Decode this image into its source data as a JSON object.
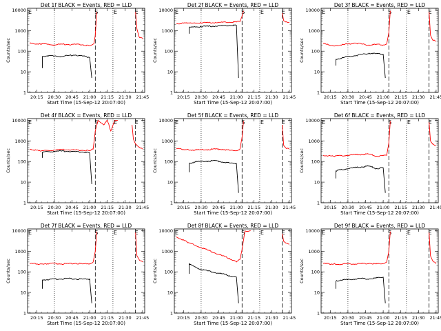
{
  "figure": {
    "xlabel": "Start Time (15-Sep-12 20:07:00)",
    "ylabel": "Counts/sec",
    "x_tick_labels": [
      "20:15",
      "20:30",
      "20:45",
      "21:00",
      "21:15",
      "21:30",
      "21:45"
    ],
    "y_tick_labels": [
      "1",
      "10",
      "100",
      "1000",
      "10000"
    ],
    "marker_labels": [
      "E",
      "S",
      "E",
      "E"
    ]
  },
  "chart_data": [
    {
      "type": "line",
      "title": "Det 1f BLACK = Events, RED = LLD",
      "ylim": [
        1,
        12000
      ],
      "yscale": "log",
      "xlim": [
        20.12,
        21.78
      ],
      "dotted_x": [
        20.5,
        21.33
      ],
      "dashed_x": [
        21.08,
        21.65
      ],
      "series": [
        {
          "name": "Events",
          "color": "#000000",
          "x": [
            20.33,
            20.33,
            20.4,
            20.5,
            20.6,
            20.7,
            20.8,
            20.9,
            21.0,
            21.03
          ],
          "y": [
            15,
            55,
            60,
            58,
            55,
            62,
            65,
            58,
            50,
            5
          ]
        },
        {
          "name": "LLD",
          "color": "#ff0000",
          "x": [
            20.15,
            20.2,
            20.3,
            20.4,
            20.5,
            20.6,
            20.7,
            20.8,
            20.9,
            21.0,
            21.03,
            21.06,
            21.08,
            21.1
          ],
          "y": [
            240,
            230,
            225,
            215,
            200,
            220,
            210,
            215,
            205,
            180,
            200,
            230,
            600,
            8000
          ]
        },
        {
          "name": "LLD-end",
          "color": "#ff0000",
          "x": [
            21.65,
            21.67,
            21.7,
            21.75
          ],
          "y": [
            8000,
            1200,
            500,
            400
          ]
        }
      ]
    },
    {
      "type": "line",
      "title": "Det 2f BLACK = Events, RED = LLD",
      "ylim": [
        1,
        12000
      ],
      "yscale": "log",
      "xlim": [
        20.12,
        21.78
      ],
      "dotted_x": [
        20.5,
        21.33
      ],
      "dashed_x": [
        21.08,
        21.65
      ],
      "series": [
        {
          "name": "Events",
          "color": "#000000",
          "x": [
            20.33,
            20.33,
            20.4,
            20.5,
            20.6,
            20.7,
            20.8,
            20.9,
            21.0,
            21.03
          ],
          "y": [
            700,
            1400,
            1500,
            1550,
            1600,
            1650,
            1700,
            1750,
            1800,
            5
          ]
        },
        {
          "name": "LLD",
          "color": "#ff0000",
          "x": [
            20.15,
            20.3,
            20.4,
            20.5,
            20.6,
            20.7,
            20.8,
            20.9,
            21.0,
            21.05,
            21.08,
            21.1
          ],
          "y": [
            2200,
            2250,
            2300,
            2350,
            2400,
            2450,
            2500,
            2550,
            2600,
            2700,
            5000,
            9000
          ]
        },
        {
          "name": "LLD-end",
          "color": "#ff0000",
          "x": [
            21.65,
            21.67,
            21.7,
            21.75
          ],
          "y": [
            7000,
            3000,
            2600,
            2500
          ]
        }
      ]
    },
    {
      "type": "line",
      "title": "Det 3f BLACK = Events, RED = LLD",
      "ylim": [
        1,
        12000
      ],
      "yscale": "log",
      "xlim": [
        20.12,
        21.78
      ],
      "dotted_x": [
        20.5,
        21.33
      ],
      "dashed_x": [
        21.08,
        21.65
      ],
      "series": [
        {
          "name": "Events",
          "color": "#000000",
          "x": [
            20.33,
            20.33,
            20.4,
            20.5,
            20.6,
            20.7,
            20.8,
            20.9,
            21.0,
            21.03
          ],
          "y": [
            20,
            40,
            45,
            55,
            60,
            70,
            80,
            75,
            70,
            5
          ]
        },
        {
          "name": "LLD",
          "color": "#ff0000",
          "x": [
            20.15,
            20.3,
            20.4,
            20.5,
            20.6,
            20.7,
            20.8,
            20.9,
            21.0,
            21.05,
            21.08,
            21.1
          ],
          "y": [
            230,
            180,
            200,
            220,
            250,
            220,
            200,
            210,
            200,
            220,
            800,
            9000
          ]
        },
        {
          "name": "LLD-end",
          "color": "#ff0000",
          "x": [
            21.65,
            21.67,
            21.7,
            21.75
          ],
          "y": [
            8000,
            600,
            350,
            300
          ]
        }
      ]
    },
    {
      "type": "line",
      "title": "Det 4f BLACK = Events, RED = LLD",
      "ylim": [
        1,
        12000
      ],
      "yscale": "log",
      "xlim": [
        20.12,
        21.78
      ],
      "dotted_x": [
        20.5,
        21.33
      ],
      "dashed_x": [
        21.08,
        21.65
      ],
      "series": [
        {
          "name": "Events",
          "color": "#000000",
          "x": [
            20.33,
            20.33,
            20.4,
            20.5,
            20.6,
            20.7,
            20.8,
            20.9,
            21.0,
            21.03
          ],
          "y": [
            150,
            280,
            300,
            310,
            320,
            310,
            300,
            290,
            260,
            8
          ]
        },
        {
          "name": "LLD",
          "color": "#ff0000",
          "x": [
            20.15,
            20.3,
            20.4,
            20.5,
            20.6,
            20.7,
            20.8,
            20.9,
            21.0,
            21.05,
            21.08,
            21.12,
            21.2,
            21.25,
            21.3,
            21.35,
            21.4
          ],
          "y": [
            400,
            320,
            340,
            360,
            380,
            370,
            360,
            350,
            330,
            400,
            3000,
            10000,
            6000,
            10000,
            3000,
            9000,
            10000
          ]
        },
        {
          "name": "LLD-end",
          "color": "#ff0000",
          "x": [
            21.6,
            21.62,
            21.65,
            21.7,
            21.75
          ],
          "y": [
            6000,
            1200,
            700,
            500,
            400
          ]
        }
      ]
    },
    {
      "type": "line",
      "title": "Det 5f BLACK = Events, RED = LLD",
      "ylim": [
        1,
        12000
      ],
      "yscale": "log",
      "xlim": [
        20.12,
        21.78
      ],
      "dotted_x": [
        20.5,
        21.33
      ],
      "dashed_x": [
        21.08,
        21.65
      ],
      "series": [
        {
          "name": "Events",
          "color": "#000000",
          "x": [
            20.33,
            20.33,
            20.4,
            20.5,
            20.6,
            20.7,
            20.8,
            20.9,
            21.0,
            21.03
          ],
          "y": [
            30,
            80,
            95,
            100,
            105,
            110,
            95,
            85,
            80,
            3
          ]
        },
        {
          "name": "LLD",
          "color": "#ff0000",
          "x": [
            20.15,
            20.3,
            20.4,
            20.5,
            20.6,
            20.7,
            20.8,
            20.9,
            21.0,
            21.05,
            21.08,
            21.1
          ],
          "y": [
            420,
            380,
            360,
            370,
            380,
            400,
            390,
            350,
            340,
            400,
            1500,
            9000
          ]
        },
        {
          "name": "LLD-end",
          "color": "#ff0000",
          "x": [
            21.65,
            21.67,
            21.7,
            21.75
          ],
          "y": [
            6000,
            600,
            450,
            400
          ]
        }
      ]
    },
    {
      "type": "line",
      "title": "Det 6f BLACK = Events, RED = LLD",
      "ylim": [
        1,
        12000
      ],
      "yscale": "log",
      "xlim": [
        20.12,
        21.78
      ],
      "dotted_x": [
        20.5,
        21.33
      ],
      "dashed_x": [
        21.08,
        21.65
      ],
      "series": [
        {
          "name": "Events",
          "color": "#000000",
          "x": [
            20.33,
            20.33,
            20.4,
            20.5,
            20.6,
            20.7,
            20.8,
            20.9,
            21.0,
            21.03
          ],
          "y": [
            15,
            35,
            40,
            45,
            50,
            55,
            60,
            45,
            50,
            3
          ]
        },
        {
          "name": "LLD",
          "color": "#ff0000",
          "x": [
            20.15,
            20.3,
            20.4,
            20.5,
            20.6,
            20.7,
            20.8,
            20.9,
            21.0,
            21.05,
            21.08,
            21.1
          ],
          "y": [
            200,
            180,
            190,
            200,
            210,
            220,
            230,
            180,
            190,
            200,
            800,
            9000
          ]
        },
        {
          "name": "LLD-end",
          "color": "#ff0000",
          "x": [
            21.65,
            21.67,
            21.7,
            21.75
          ],
          "y": [
            8000,
            1000,
            700,
            600
          ]
        }
      ]
    },
    {
      "type": "line",
      "title": "Det 7f BLACK = Events, RED = LLD",
      "ylim": [
        1,
        12000
      ],
      "yscale": "log",
      "xlim": [
        20.12,
        21.78
      ],
      "dotted_x": [
        20.5,
        21.33
      ],
      "dashed_x": [
        21.08,
        21.65
      ],
      "series": [
        {
          "name": "Events",
          "color": "#000000",
          "x": [
            20.33,
            20.33,
            20.4,
            20.5,
            20.6,
            20.7,
            20.8,
            20.9,
            21.0,
            21.03
          ],
          "y": [
            15,
            40,
            42,
            45,
            45,
            48,
            45,
            44,
            45,
            3
          ]
        },
        {
          "name": "LLD",
          "color": "#ff0000",
          "x": [
            20.15,
            20.3,
            20.4,
            20.5,
            20.6,
            20.7,
            20.8,
            20.9,
            21.0,
            21.05,
            21.08,
            21.1
          ],
          "y": [
            250,
            240,
            250,
            260,
            240,
            250,
            260,
            240,
            250,
            300,
            1000,
            9000
          ]
        },
        {
          "name": "LLD-end",
          "color": "#ff0000",
          "x": [
            21.65,
            21.67,
            21.7,
            21.75
          ],
          "y": [
            8000,
            600,
            400,
            300
          ]
        }
      ]
    },
    {
      "type": "line",
      "title": "Det 8f BLACK = Events, RED = LLD",
      "ylim": [
        1,
        12000
      ],
      "yscale": "log",
      "xlim": [
        20.12,
        21.78
      ],
      "dotted_x": [
        20.5,
        21.33
      ],
      "dashed_x": [
        21.08,
        21.65
      ],
      "series": [
        {
          "name": "Events",
          "color": "#000000",
          "x": [
            20.33,
            20.33,
            20.4,
            20.5,
            20.6,
            20.7,
            20.8,
            20.9,
            21.0,
            21.03
          ],
          "y": [
            80,
            250,
            180,
            130,
            110,
            90,
            80,
            65,
            55,
            3
          ]
        },
        {
          "name": "LLD",
          "color": "#ff0000",
          "x": [
            20.15,
            20.3,
            20.4,
            20.5,
            20.6,
            20.7,
            20.8,
            20.9,
            21.0,
            21.05,
            21.08,
            21.12,
            21.2
          ],
          "y": [
            5000,
            2800,
            2000,
            1500,
            1100,
            800,
            600,
            450,
            300,
            400,
            1200,
            9000,
            10000
          ]
        },
        {
          "name": "LLD-end",
          "color": "#ff0000",
          "x": [
            21.65,
            21.67,
            21.7,
            21.75
          ],
          "y": [
            7000,
            3000,
            2500,
            2200
          ]
        }
      ]
    },
    {
      "type": "line",
      "title": "Det 9f BLACK = Events, RED = LLD",
      "ylim": [
        1,
        12000
      ],
      "yscale": "log",
      "xlim": [
        20.12,
        21.78
      ],
      "dotted_x": [
        20.5,
        21.33
      ],
      "dashed_x": [
        21.08,
        21.65
      ],
      "series": [
        {
          "name": "Events",
          "color": "#000000",
          "x": [
            20.33,
            20.33,
            20.4,
            20.5,
            20.6,
            20.7,
            20.8,
            20.9,
            21.0,
            21.03
          ],
          "y": [
            15,
            35,
            40,
            42,
            45,
            48,
            45,
            50,
            55,
            3
          ]
        },
        {
          "name": "LLD",
          "color": "#ff0000",
          "x": [
            20.15,
            20.3,
            20.4,
            20.5,
            20.6,
            20.7,
            20.8,
            20.9,
            21.0,
            21.05,
            21.08,
            21.1
          ],
          "y": [
            250,
            240,
            230,
            250,
            240,
            250,
            260,
            240,
            250,
            300,
            1000,
            9000
          ]
        },
        {
          "name": "LLD-end",
          "color": "#ff0000",
          "x": [
            21.65,
            21.67,
            21.7,
            21.75
          ],
          "y": [
            8000,
            600,
            350,
            250
          ]
        }
      ]
    }
  ]
}
